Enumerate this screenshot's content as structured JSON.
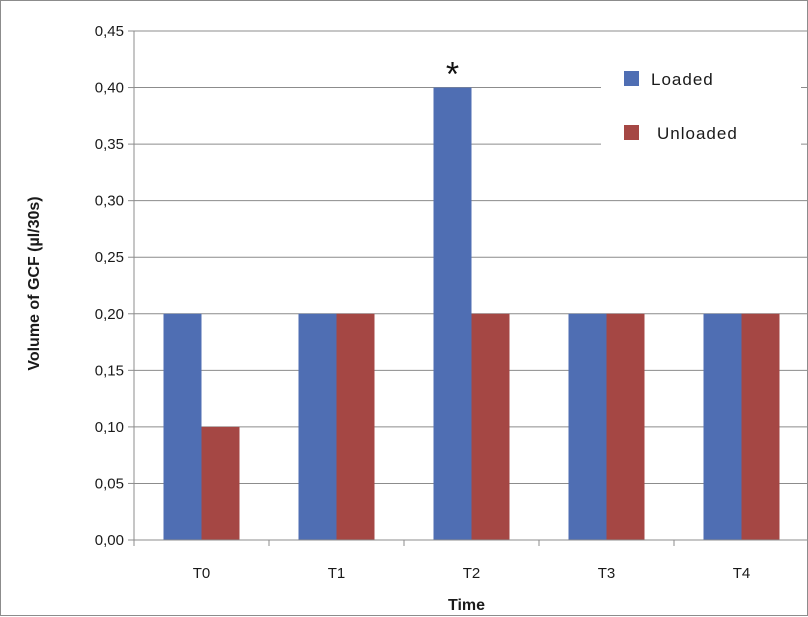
{
  "chart_data": {
    "type": "bar",
    "xlabel": "Time",
    "ylabel": "Volume of GCF (µl/30s)",
    "categories": [
      "T0",
      "T1",
      "T2",
      "T3",
      "T4"
    ],
    "series": [
      {
        "name": "Loaded",
        "color": "#4f6eb3",
        "values": [
          0.2,
          0.2,
          0.4,
          0.2,
          0.2
        ]
      },
      {
        "name": "Unloaded",
        "color": "#a54744",
        "values": [
          0.1,
          0.2,
          0.2,
          0.2,
          0.2
        ]
      }
    ],
    "ylim": [
      0,
      0.45
    ],
    "yticks": [
      "0,00",
      "0,05",
      "0,10",
      "0,15",
      "0,20",
      "0,25",
      "0,30",
      "0,35",
      "0,40",
      "0,45"
    ],
    "grid": true,
    "legend_position": "top-right",
    "annotations": [
      {
        "text": "*",
        "category": "T2",
        "series": "Loaded"
      }
    ]
  }
}
